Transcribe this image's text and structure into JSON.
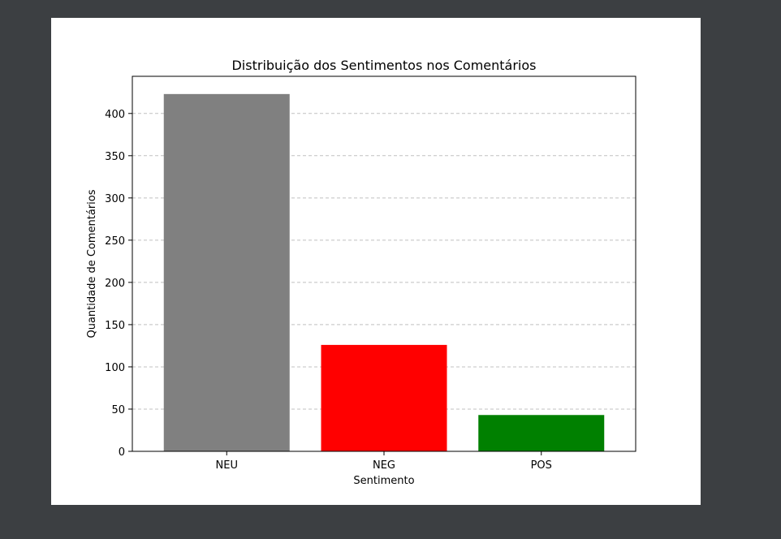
{
  "chart_data": {
    "type": "bar",
    "title": "Distribuição dos Sentimentos nos Comentários",
    "xlabel": "Sentimento",
    "ylabel": "Quantidade de Comentários",
    "categories": [
      "NEU",
      "NEG",
      "POS"
    ],
    "values": [
      423,
      126,
      43
    ],
    "colors": [
      "#808080",
      "#ff0000",
      "#008000"
    ],
    "ylim": [
      0,
      444
    ],
    "yticks": [
      0,
      50,
      100,
      150,
      200,
      250,
      300,
      350,
      400
    ],
    "grid": "y-dashed"
  }
}
